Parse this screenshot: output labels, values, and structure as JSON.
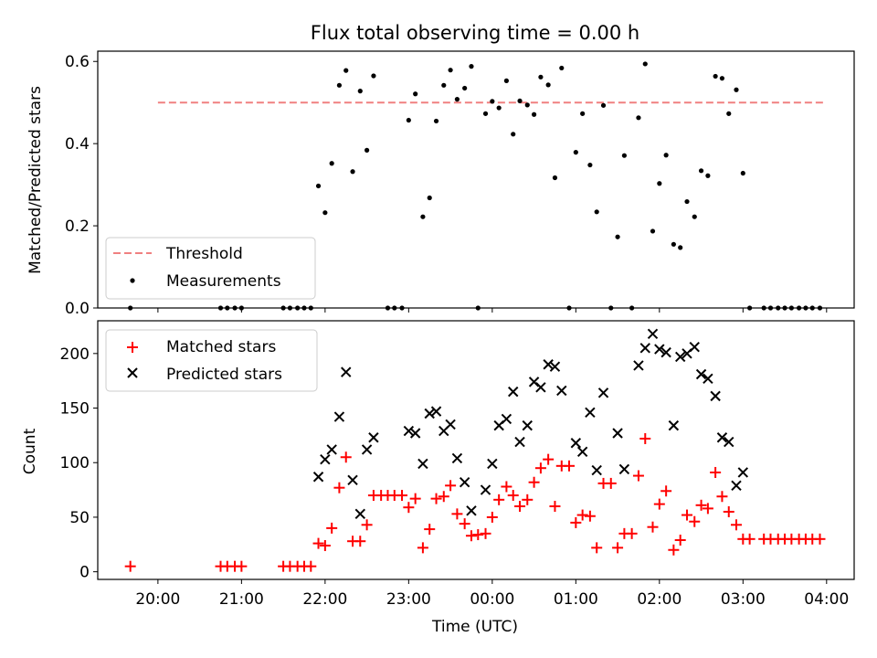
{
  "figure": {
    "title": "Flux total observing time = 0.00 h"
  },
  "chart_data": [
    {
      "type": "scatter",
      "ylabel": "Matched/Predicted stars",
      "xlabel": "",
      "ylim": [
        0,
        0.625
      ],
      "yticks": [
        0.0,
        0.2,
        0.4,
        0.6
      ],
      "ytick_labels": [
        "0.0",
        "0.2",
        "0.4",
        "0.6"
      ],
      "xlim": [
        19.28,
        28.33
      ],
      "grid": false,
      "legend": {
        "placement": "lower-left",
        "entries": [
          "Threshold",
          "Measurements"
        ]
      },
      "threshold": {
        "name": "Threshold",
        "y": 0.5,
        "x_start": 20.0,
        "x_end": 28.0,
        "color": "#f08080"
      },
      "series": [
        {
          "name": "Measurements",
          "color": "#000000",
          "points": [
            [
              19.67,
              0.0
            ],
            [
              20.75,
              0.0
            ],
            [
              20.83,
              0.0
            ],
            [
              20.92,
              0.0
            ],
            [
              21.0,
              0.0
            ],
            [
              21.5,
              0.0
            ],
            [
              21.58,
              0.0
            ],
            [
              21.67,
              0.0
            ],
            [
              21.75,
              0.0
            ],
            [
              21.83,
              0.0
            ],
            [
              21.92,
              0.297
            ],
            [
              22.0,
              0.232
            ],
            [
              22.08,
              0.352
            ],
            [
              22.17,
              0.542
            ],
            [
              22.25,
              0.578
            ],
            [
              22.33,
              0.332
            ],
            [
              22.42,
              0.528
            ],
            [
              22.5,
              0.384
            ],
            [
              22.58,
              0.565
            ],
            [
              22.75,
              0.0
            ],
            [
              22.83,
              0.0
            ],
            [
              22.92,
              0.0
            ],
            [
              23.0,
              0.457
            ],
            [
              23.08,
              0.521
            ],
            [
              23.17,
              0.222
            ],
            [
              23.25,
              0.268
            ],
            [
              23.33,
              0.455
            ],
            [
              23.42,
              0.542
            ],
            [
              23.5,
              0.579
            ],
            [
              23.58,
              0.508
            ],
            [
              23.67,
              0.535
            ],
            [
              23.75,
              0.588
            ],
            [
              23.83,
              0.0
            ],
            [
              23.92,
              0.473
            ],
            [
              24.0,
              0.503
            ],
            [
              24.08,
              0.487
            ],
            [
              24.17,
              0.553
            ],
            [
              24.25,
              0.423
            ],
            [
              24.33,
              0.504
            ],
            [
              24.42,
              0.494
            ],
            [
              24.5,
              0.471
            ],
            [
              24.58,
              0.562
            ],
            [
              24.67,
              0.543
            ],
            [
              24.75,
              0.317
            ],
            [
              24.83,
              0.584
            ],
            [
              24.92,
              0.0
            ],
            [
              25.0,
              0.379
            ],
            [
              25.08,
              0.473
            ],
            [
              25.17,
              0.348
            ],
            [
              25.25,
              0.234
            ],
            [
              25.33,
              0.493
            ],
            [
              25.42,
              0.0
            ],
            [
              25.5,
              0.173
            ],
            [
              25.58,
              0.371
            ],
            [
              25.67,
              0.0
            ],
            [
              25.75,
              0.463
            ],
            [
              25.83,
              0.594
            ],
            [
              25.92,
              0.187
            ],
            [
              26.0,
              0.303
            ],
            [
              26.08,
              0.372
            ],
            [
              26.17,
              0.155
            ],
            [
              26.25,
              0.147
            ],
            [
              26.33,
              0.259
            ],
            [
              26.42,
              0.222
            ],
            [
              26.5,
              0.334
            ],
            [
              26.58,
              0.322
            ],
            [
              26.67,
              0.564
            ],
            [
              26.75,
              0.559
            ],
            [
              26.83,
              0.473
            ],
            [
              26.92,
              0.531
            ],
            [
              27.0,
              0.328
            ],
            [
              27.08,
              0.0
            ],
            [
              27.25,
              0.0
            ],
            [
              27.33,
              0.0
            ],
            [
              27.42,
              0.0
            ],
            [
              27.5,
              0.0
            ],
            [
              27.58,
              0.0
            ],
            [
              27.67,
              0.0
            ],
            [
              27.75,
              0.0
            ],
            [
              27.83,
              0.0
            ],
            [
              27.92,
              0.0
            ]
          ]
        }
      ]
    },
    {
      "type": "scatter",
      "ylabel": "Count",
      "xlabel": "Time (UTC)",
      "ylim": [
        -7,
        230
      ],
      "yticks": [
        0,
        50,
        100,
        150,
        200
      ],
      "ytick_labels": [
        "0",
        "50",
        "100",
        "150",
        "200"
      ],
      "xlim": [
        19.28,
        28.33
      ],
      "xticks": [
        20,
        21,
        22,
        23,
        24,
        25,
        26,
        27,
        28
      ],
      "xtick_labels": [
        "20:00",
        "21:00",
        "22:00",
        "23:00",
        "00:00",
        "01:00",
        "02:00",
        "03:00",
        "04:00"
      ],
      "grid": false,
      "legend": {
        "placement": "upper-left",
        "entries": [
          "Matched stars",
          "Predicted stars"
        ]
      },
      "series": [
        {
          "name": "Matched stars",
          "marker": "plus",
          "color": "#ff0000",
          "points": [
            [
              19.67,
              5
            ],
            [
              20.75,
              5
            ],
            [
              20.83,
              5
            ],
            [
              20.92,
              5
            ],
            [
              21.0,
              5
            ],
            [
              21.5,
              5
            ],
            [
              21.58,
              5
            ],
            [
              21.67,
              5
            ],
            [
              21.75,
              5
            ],
            [
              21.83,
              5
            ],
            [
              21.92,
              26
            ],
            [
              22.0,
              24
            ],
            [
              22.08,
              40
            ],
            [
              22.17,
              77
            ],
            [
              22.25,
              105
            ],
            [
              22.33,
              28
            ],
            [
              22.42,
              28
            ],
            [
              22.5,
              43
            ],
            [
              22.58,
              70
            ],
            [
              22.67,
              70
            ],
            [
              22.75,
              70
            ],
            [
              22.83,
              70
            ],
            [
              22.92,
              70
            ],
            [
              23.0,
              59
            ],
            [
              23.08,
              67
            ],
            [
              23.17,
              22
            ],
            [
              23.25,
              39
            ],
            [
              23.33,
              67
            ],
            [
              23.42,
              69
            ],
            [
              23.5,
              79
            ],
            [
              23.58,
              53
            ],
            [
              23.67,
              44
            ],
            [
              23.75,
              33
            ],
            [
              23.83,
              34
            ],
            [
              23.92,
              35
            ],
            [
              24.0,
              50
            ],
            [
              24.08,
              66
            ],
            [
              24.17,
              78
            ],
            [
              24.25,
              70
            ],
            [
              24.33,
              60
            ],
            [
              24.42,
              66
            ],
            [
              24.5,
              82
            ],
            [
              24.58,
              95
            ],
            [
              24.67,
              103
            ],
            [
              24.75,
              60
            ],
            [
              24.83,
              97
            ],
            [
              24.92,
              97
            ],
            [
              25.0,
              45
            ],
            [
              25.08,
              52
            ],
            [
              25.17,
              51
            ],
            [
              25.25,
              22
            ],
            [
              25.33,
              81
            ],
            [
              25.42,
              81
            ],
            [
              25.5,
              22
            ],
            [
              25.58,
              35
            ],
            [
              25.67,
              35
            ],
            [
              25.75,
              88
            ],
            [
              25.83,
              122
            ],
            [
              25.92,
              41
            ],
            [
              26.0,
              62
            ],
            [
              26.08,
              74
            ],
            [
              26.17,
              20
            ],
            [
              26.25,
              29
            ],
            [
              26.33,
              52
            ],
            [
              26.42,
              46
            ],
            [
              26.5,
              61
            ],
            [
              26.58,
              58
            ],
            [
              26.67,
              91
            ],
            [
              26.75,
              69
            ],
            [
              26.83,
              55
            ],
            [
              26.92,
              43
            ],
            [
              27.0,
              30
            ],
            [
              27.08,
              30
            ],
            [
              27.25,
              30
            ],
            [
              27.33,
              30
            ],
            [
              27.42,
              30
            ],
            [
              27.5,
              30
            ],
            [
              27.58,
              30
            ],
            [
              27.67,
              30
            ],
            [
              27.75,
              30
            ],
            [
              27.83,
              30
            ],
            [
              27.92,
              30
            ]
          ]
        },
        {
          "name": "Predicted stars",
          "marker": "x",
          "color": "#000000",
          "points": [
            [
              21.92,
              87
            ],
            [
              22.0,
              103
            ],
            [
              22.08,
              112
            ],
            [
              22.17,
              142
            ],
            [
              22.25,
              183
            ],
            [
              22.33,
              84
            ],
            [
              22.42,
              53
            ],
            [
              22.5,
              112
            ],
            [
              22.58,
              123
            ],
            [
              23.0,
              129
            ],
            [
              23.08,
              127
            ],
            [
              23.17,
              99
            ],
            [
              23.25,
              145
            ],
            [
              23.33,
              147
            ],
            [
              23.42,
              129
            ],
            [
              23.5,
              135
            ],
            [
              23.58,
              104
            ],
            [
              23.67,
              82
            ],
            [
              23.75,
              56
            ],
            [
              23.92,
              75
            ],
            [
              24.0,
              99
            ],
            [
              24.08,
              134
            ],
            [
              24.17,
              140
            ],
            [
              24.25,
              165
            ],
            [
              24.33,
              119
            ],
            [
              24.42,
              134
            ],
            [
              24.5,
              174
            ],
            [
              24.58,
              169
            ],
            [
              24.67,
              190
            ],
            [
              24.75,
              188
            ],
            [
              24.83,
              166
            ],
            [
              25.0,
              118
            ],
            [
              25.08,
              110
            ],
            [
              25.17,
              146
            ],
            [
              25.25,
              93
            ],
            [
              25.33,
              164
            ],
            [
              25.5,
              127
            ],
            [
              25.58,
              94
            ],
            [
              25.75,
              189
            ],
            [
              25.83,
              205
            ],
            [
              25.92,
              218
            ],
            [
              26.0,
              204
            ],
            [
              26.08,
              201
            ],
            [
              26.17,
              134
            ],
            [
              26.25,
              197
            ],
            [
              26.33,
              200
            ],
            [
              26.42,
              206
            ],
            [
              26.5,
              181
            ],
            [
              26.58,
              177
            ],
            [
              26.67,
              161
            ],
            [
              26.75,
              123
            ],
            [
              26.83,
              119
            ],
            [
              26.92,
              79
            ],
            [
              27.0,
              91
            ]
          ]
        }
      ]
    }
  ]
}
